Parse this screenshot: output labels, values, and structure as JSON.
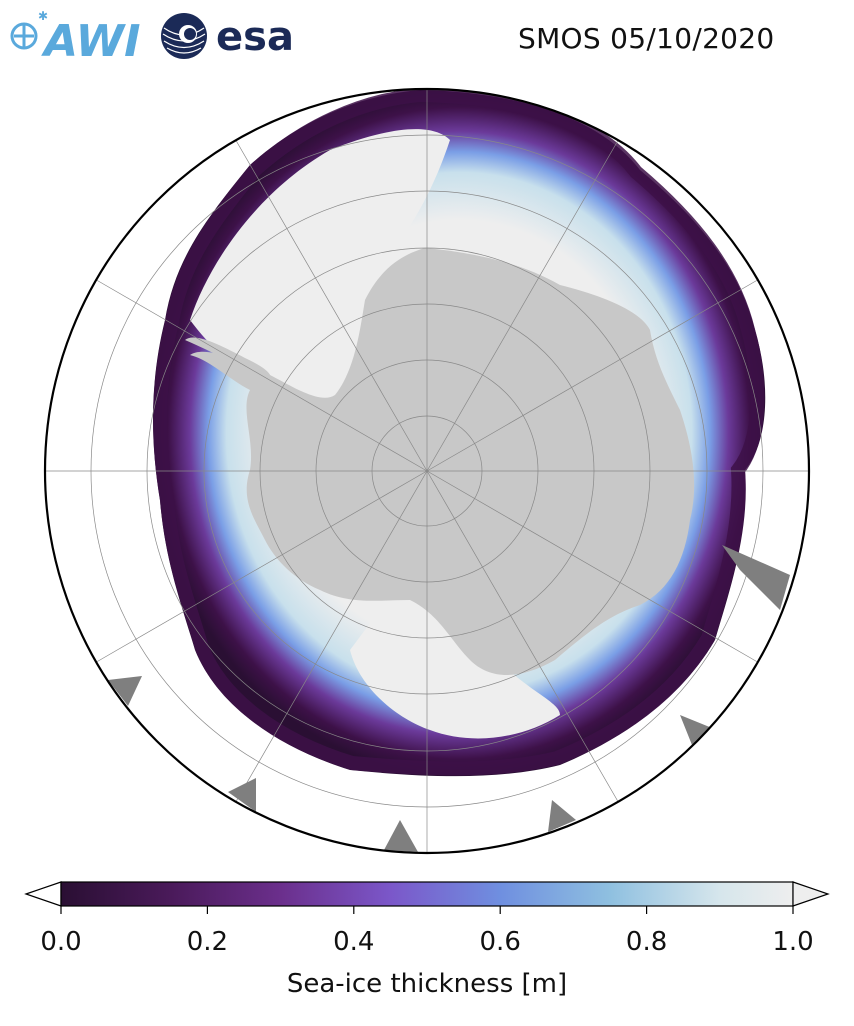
{
  "header": {
    "title": "SMOS 05/10/2020",
    "awi_logo_text": "AWI",
    "esa_logo_text": "esa"
  },
  "map": {
    "projection": "south-polar-stereographic",
    "land_color": "#c8c8c8",
    "ocean_color": "#ffffff",
    "gridlines": true
  },
  "colorbar": {
    "label": "Sea-ice thickness [m]",
    "ticks": [
      "0.0",
      "0.2",
      "0.4",
      "0.6",
      "0.8",
      "1.0"
    ],
    "range": [
      0.0,
      1.0
    ],
    "extend": "both",
    "colors": [
      "#2a0f33",
      "#4a1a5a",
      "#6b2f8c",
      "#7b57c9",
      "#6f8fe0",
      "#8fc0e0",
      "#d6e6ec",
      "#eeeeee"
    ]
  }
}
